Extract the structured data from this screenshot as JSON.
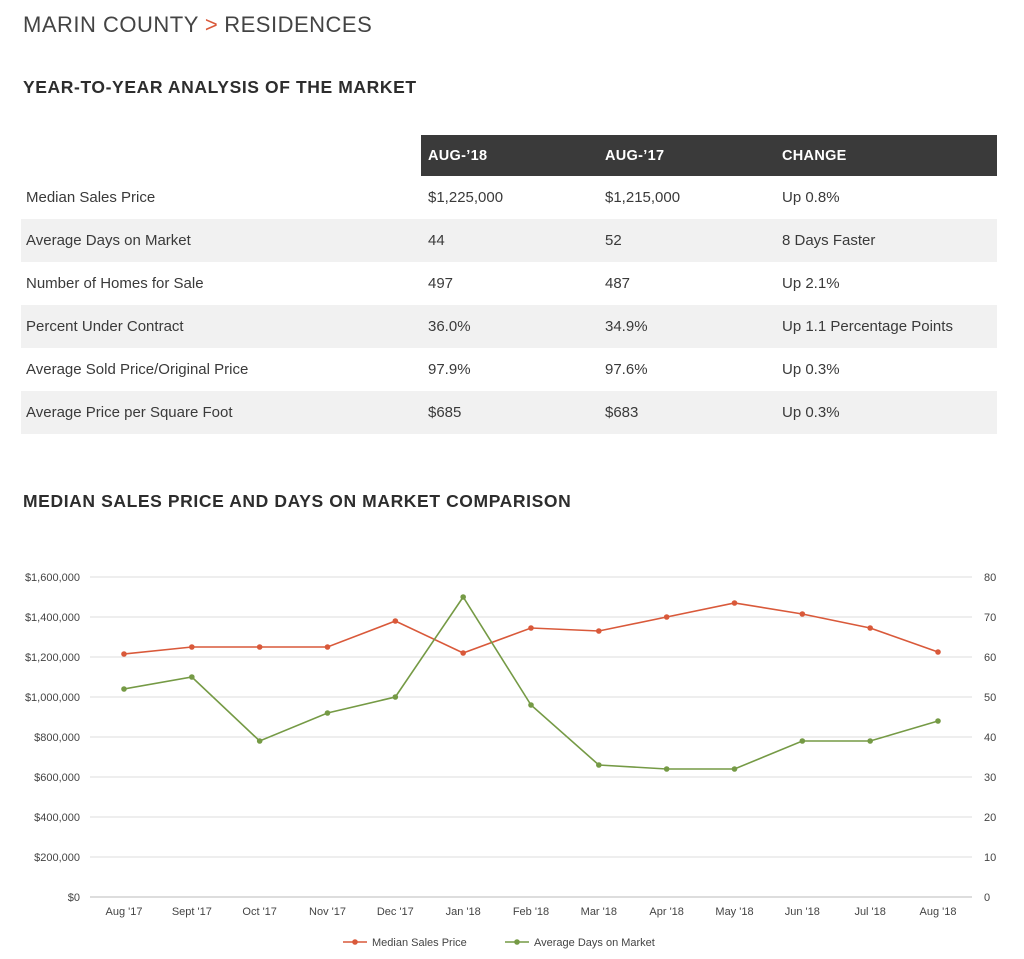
{
  "breadcrumb": {
    "county": "MARIN COUNTY",
    "separator": ">",
    "category": "RESIDENCES"
  },
  "table_section": {
    "title": "YEAR-TO-YEAR ANALYSIS OF THE MARKET",
    "headers": [
      "AUG-’18",
      "AUG-’17",
      "CHANGE"
    ],
    "rows": [
      {
        "label": "Median Sales Price",
        "aug18": "$1,225,000",
        "aug17": "$1,215,000",
        "change": "Up 0.8%"
      },
      {
        "label": "Average Days on Market",
        "aug18": "44",
        "aug17": "52",
        "change": "8 Days Faster"
      },
      {
        "label": "Number of Homes for Sale",
        "aug18": "497",
        "aug17": "487",
        "change": "Up 2.1%"
      },
      {
        "label": "Percent Under Contract",
        "aug18": "36.0%",
        "aug17": "34.9%",
        "change": "Up 1.1 Percentage Points"
      },
      {
        "label": "Average Sold Price/Original Price",
        "aug18": "97.9%",
        "aug17": "97.6%",
        "change": "Up 0.3%"
      },
      {
        "label": "Average Price per Square Foot",
        "aug18": "$685",
        "aug17": "$683",
        "change": "Up 0.3%"
      }
    ]
  },
  "chart_section": {
    "title": "MEDIAN SALES PRICE AND DAYS ON MARKET COMPARISON"
  },
  "chart_data": {
    "type": "line",
    "categories": [
      "Aug '17",
      "Sept '17",
      "Oct '17",
      "Nov '17",
      "Dec '17",
      "Jan '18",
      "Feb '18",
      "Mar '18",
      "Apr '18",
      "May '18",
      "Jun '18",
      "Jul '18",
      "Aug '18"
    ],
    "y_left": {
      "ticks": [
        "$0",
        "$200,000",
        "$400,000",
        "$600,000",
        "$800,000",
        "$1,000,000",
        "$1,200,000",
        "$1,400,000",
        "$1,600,000"
      ],
      "ylim": [
        0,
        1600000
      ]
    },
    "y_right": {
      "ticks": [
        "0",
        "10",
        "20",
        "30",
        "40",
        "50",
        "60",
        "70",
        "80"
      ],
      "ylim": [
        0,
        80
      ]
    },
    "grid": true,
    "legend_position": "bottom-center",
    "series": [
      {
        "name": "Median Sales Price",
        "axis": "left",
        "color": "#d9593a",
        "values": [
          1215000,
          1250000,
          1250000,
          1250000,
          1380000,
          1220000,
          1345000,
          1330000,
          1400000,
          1470000,
          1415000,
          1345000,
          1225000
        ]
      },
      {
        "name": "Average Days on Market",
        "axis": "right",
        "color": "#759a45",
        "values": [
          52,
          55,
          39,
          46,
          50,
          75,
          48,
          33,
          32,
          32,
          39,
          39,
          44
        ]
      }
    ]
  }
}
